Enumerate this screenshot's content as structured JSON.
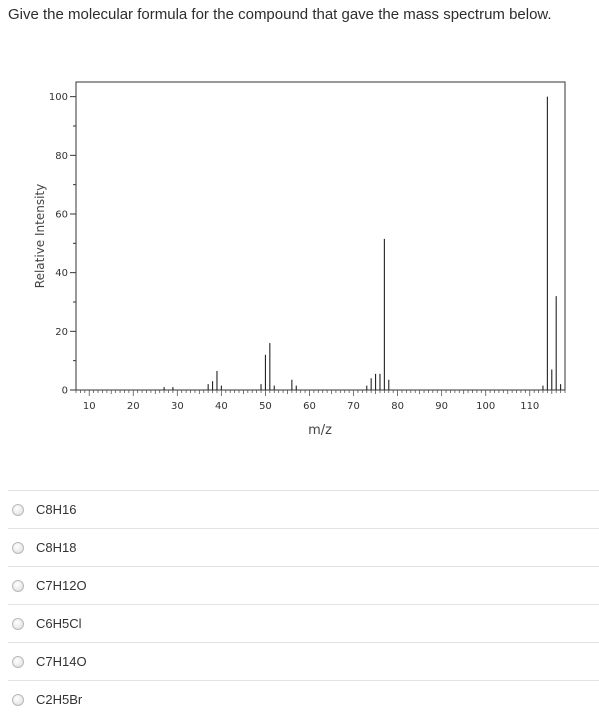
{
  "question": "Give the molecular formula for the compound that gave the mass spectrum below.",
  "chart_data": {
    "type": "bar",
    "title": "",
    "xlabel": "m/z",
    "ylabel": "Relative Intensity",
    "xlim": [
      7,
      118
    ],
    "ylim": [
      0,
      105
    ],
    "xticks": [
      10,
      20,
      30,
      40,
      50,
      60,
      70,
      80,
      90,
      100,
      110
    ],
    "yticks": [
      0,
      20,
      40,
      60,
      80,
      100
    ],
    "grid": false,
    "peaks": [
      {
        "mz": 27,
        "intensity": 1
      },
      {
        "mz": 29,
        "intensity": 1
      },
      {
        "mz": 37,
        "intensity": 2
      },
      {
        "mz": 38,
        "intensity": 3
      },
      {
        "mz": 39,
        "intensity": 6.5
      },
      {
        "mz": 40,
        "intensity": 1.5
      },
      {
        "mz": 49,
        "intensity": 2
      },
      {
        "mz": 50,
        "intensity": 12
      },
      {
        "mz": 51,
        "intensity": 16
      },
      {
        "mz": 52,
        "intensity": 1.5
      },
      {
        "mz": 56,
        "intensity": 3.5
      },
      {
        "mz": 57,
        "intensity": 1.5
      },
      {
        "mz": 73,
        "intensity": 1.5
      },
      {
        "mz": 74,
        "intensity": 4
      },
      {
        "mz": 75,
        "intensity": 5.5
      },
      {
        "mz": 76,
        "intensity": 5.5
      },
      {
        "mz": 77,
        "intensity": 51.5
      },
      {
        "mz": 78,
        "intensity": 3.5
      },
      {
        "mz": 113,
        "intensity": 1.5
      },
      {
        "mz": 114,
        "intensity": 100
      },
      {
        "mz": 115,
        "intensity": 7
      },
      {
        "mz": 116,
        "intensity": 32
      },
      {
        "mz": 117,
        "intensity": 2
      }
    ]
  },
  "options": [
    {
      "label": "C8H16"
    },
    {
      "label": "C8H18"
    },
    {
      "label": "C7H12O"
    },
    {
      "label": "C6H5Cl"
    },
    {
      "label": "C7H14O"
    },
    {
      "label": "C2H5Br"
    }
  ]
}
